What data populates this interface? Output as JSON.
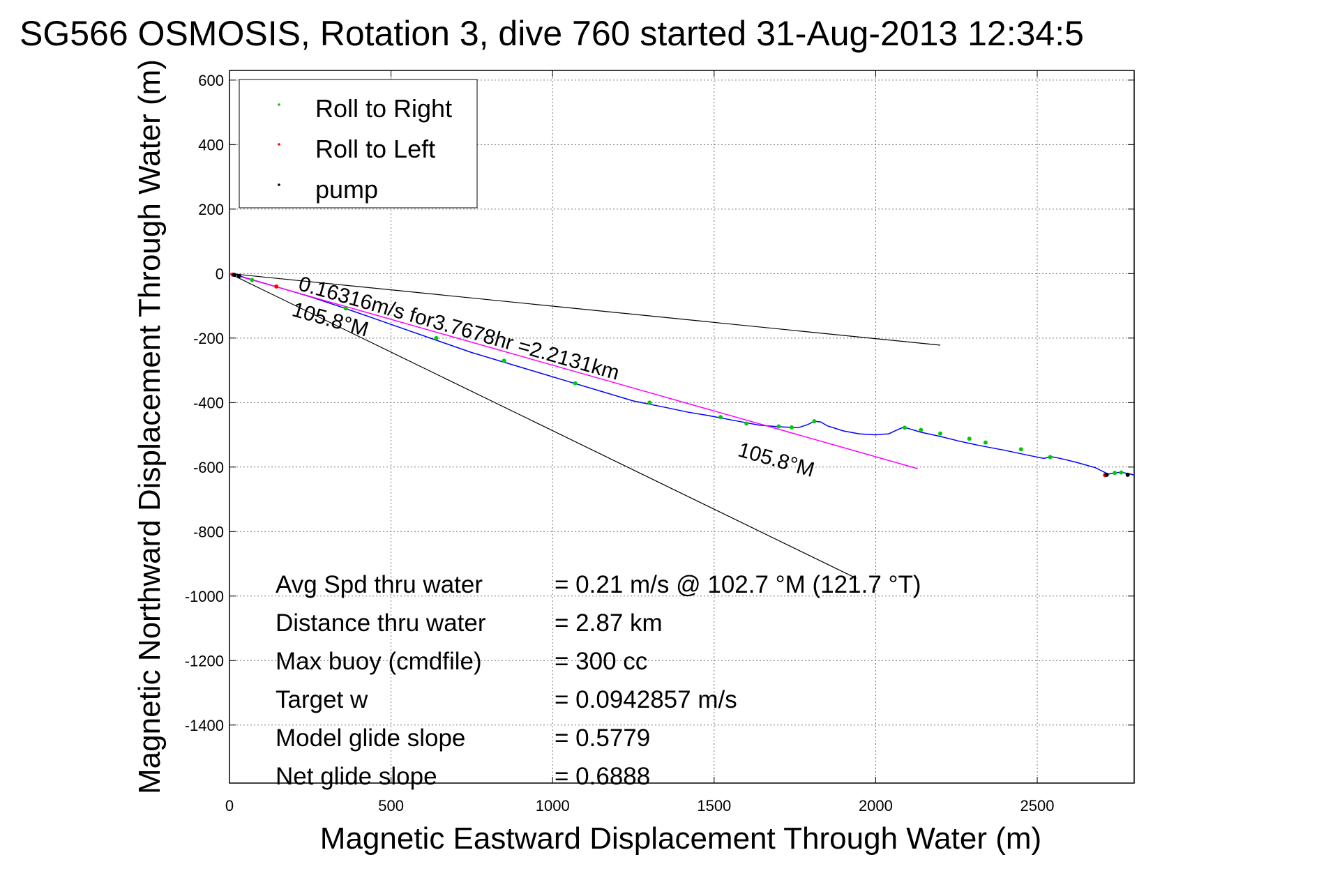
{
  "chart_data": {
    "type": "line",
    "title": "SG566 OSMOSIS, Rotation 3, dive 760 started 31-Aug-2013 12:34:5",
    "xlabel": "Magnetic Eastward Displacement Through Water (m)",
    "ylabel": "Magnetic Northward Displacement Through Water (m)",
    "xlim": [
      0,
      2800
    ],
    "ylim": [
      -1580,
      630
    ],
    "xticks": [
      0,
      500,
      1000,
      1500,
      2000,
      2500
    ],
    "yticks": [
      600,
      400,
      200,
      0,
      -200,
      -400,
      -600,
      -800,
      -1000,
      -1200,
      -1400
    ],
    "grid": true,
    "legend_position": "top-left",
    "legend": [
      {
        "label": "Roll to Right",
        "color": "#00cc00"
      },
      {
        "label": "Roll to Left",
        "color": "#ff0000"
      },
      {
        "label": "pump",
        "color": "#000000"
      }
    ],
    "series": [
      {
        "color": "#0000ff",
        "x": [
          0,
          40,
          80,
          150,
          250,
          350,
          450,
          550,
          650,
          750,
          850,
          950,
          1050,
          1150,
          1250,
          1350,
          1420,
          1480,
          1560,
          1640,
          1700,
          1760,
          1790,
          1810,
          1830,
          1850,
          1900,
          1950,
          2000,
          2040,
          2070,
          2085,
          2100,
          2140,
          2200,
          2260,
          2320,
          2400,
          2470,
          2520,
          2545,
          2570,
          2620,
          2680,
          2720,
          2740,
          2760,
          2790,
          2800
        ],
        "y": [
          0,
          -10,
          -22,
          -42,
          -72,
          -105,
          -140,
          -175,
          -210,
          -245,
          -275,
          -305,
          -335,
          -365,
          -395,
          -415,
          -430,
          -440,
          -455,
          -470,
          -475,
          -478,
          -468,
          -458,
          -460,
          -472,
          -488,
          -497,
          -500,
          -497,
          -483,
          -477,
          -480,
          -492,
          -505,
          -520,
          -533,
          -548,
          -563,
          -573,
          -568,
          -573,
          -585,
          -602,
          -622,
          -618,
          -616,
          -622,
          -625
        ]
      },
      {
        "color": "#ff00ff",
        "x": [
          0,
          2130
        ],
        "y": [
          0,
          -605
        ]
      }
    ],
    "markers": {
      "roll_right": {
        "color": "#00cc00",
        "x": [
          70,
          360,
          640,
          850,
          1070,
          1300,
          1520,
          1600,
          1700,
          1740,
          1810,
          2090,
          2140,
          2200,
          2290,
          2340,
          2450,
          2540,
          2740,
          2760
        ],
        "y": [
          -20,
          -108,
          -200,
          -270,
          -340,
          -400,
          -445,
          -465,
          -474,
          -477,
          -458,
          -478,
          -485,
          -496,
          -512,
          -524,
          -545,
          -569,
          -618,
          -617
        ]
      },
      "roll_left": {
        "color": "#ff0000",
        "x": [
          10,
          145,
          2710
        ],
        "y": [
          -3,
          -40,
          -625
        ]
      },
      "pump": {
        "color": "#000000",
        "x": [
          15,
          30,
          2715,
          2780
        ],
        "y": [
          -4,
          -7,
          -624,
          -624
        ]
      }
    },
    "reference_lines": [
      {
        "x": [
          0,
          2200
        ],
        "y": [
          0,
          -222
        ],
        "color": "#000000"
      },
      {
        "x": [
          0,
          1940
        ],
        "y": [
          0,
          -945
        ],
        "color": "#000000"
      }
    ],
    "annotations": [
      {
        "text": "0.16316m/s for3.7678hr =2.2131km",
        "x": 210,
        "y": -50,
        "rotation": 15.8
      },
      {
        "text": "105.8°M",
        "x": 190,
        "y": -130,
        "rotation": 15.8
      },
      {
        "text": "105.8°M",
        "x": 1570,
        "y": -565,
        "rotation": 15.8
      }
    ],
    "stats": [
      {
        "label": "Avg Spd thru water",
        "value": "=  0.21 m/s @ 102.7 °M (121.7 °T)"
      },
      {
        "label": "Distance thru water",
        "value": "=  2.87 km"
      },
      {
        "label": "Max buoy (cmdfile)",
        "value": "= 300 cc"
      },
      {
        "label": "Target w",
        "value": "= 0.0942857 m/s"
      },
      {
        "label": "Model glide slope",
        "value": "= 0.5779"
      },
      {
        "label": "Net glide slope",
        "value": "= 0.6888"
      }
    ]
  }
}
